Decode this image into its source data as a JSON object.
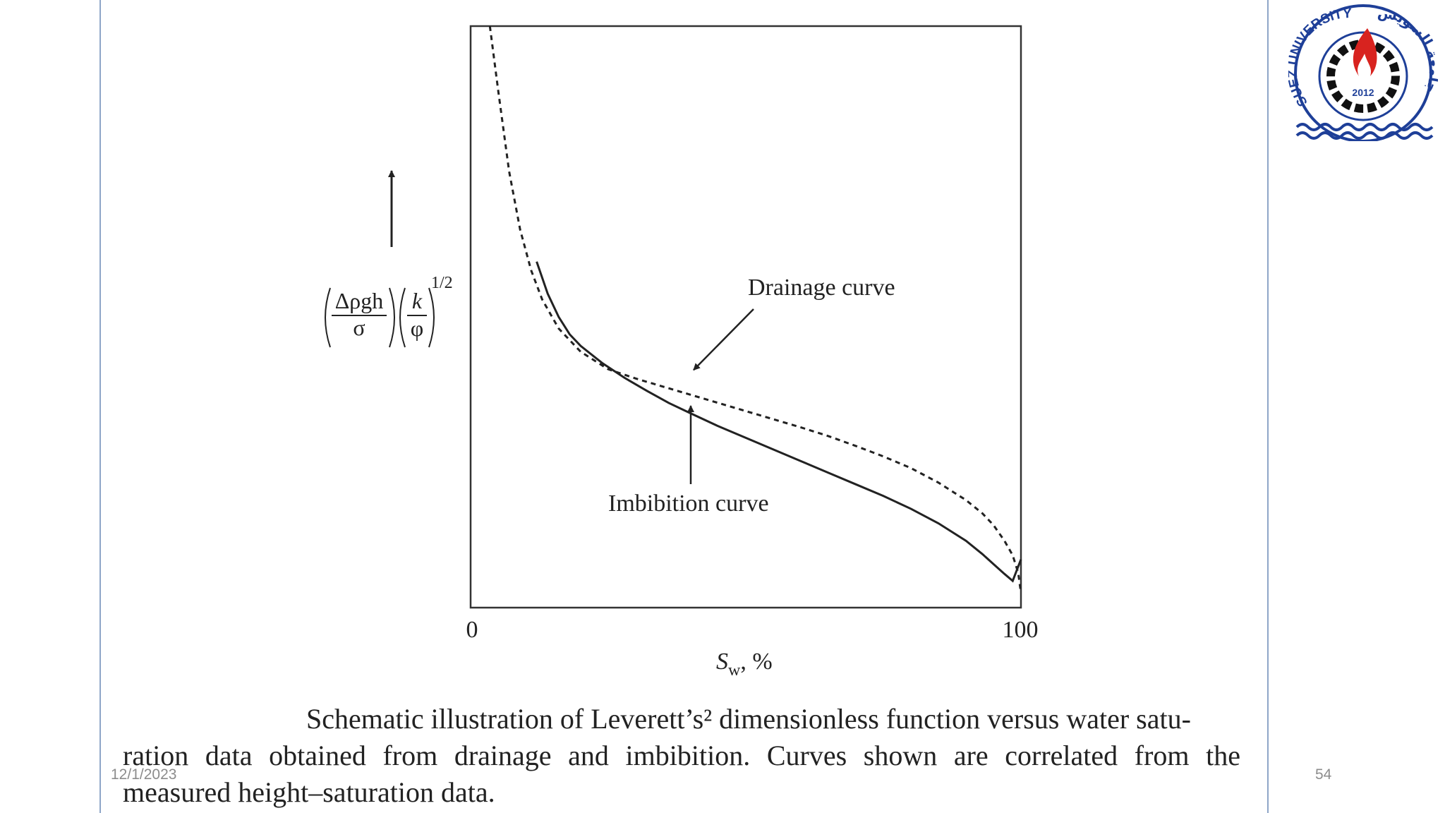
{
  "slide": {
    "footer_date": "12/1/2023",
    "page_number": "54",
    "caption_lines": [
      "Schematic illustration of Leverett’s² dimensionless function versus water satu-",
      "ration data obtained from drainage and imbibition. Curves shown are correlated from the",
      "measured height–saturation data."
    ],
    "logo": {
      "text_en": "SUEZ UNIVERSITY",
      "text_ar": "جامعة السويس",
      "year": "2012",
      "colors": {
        "blue": "#1e3f98",
        "red": "#d8231f",
        "black": "#111111"
      }
    }
  },
  "chart_data": {
    "type": "line",
    "title": "",
    "xlabel": "S_w, %",
    "xlabel_parts": {
      "symbol": "S",
      "subscript": "w",
      "suffix": ", %"
    },
    "ylabel": "(Δρgh/σ)(k/φ)^1/2",
    "ylabel_parts": {
      "num1": "Δρgh",
      "den1": "σ",
      "num2": "k",
      "den2": "φ",
      "exponent": "1/2"
    },
    "xlim": [
      0,
      100
    ],
    "ylim": [
      0,
      100
    ],
    "x_ticks": [
      "0",
      "100"
    ],
    "grid": false,
    "series": [
      {
        "name": "Drainage curve",
        "style": "dashed",
        "x": [
          3.5,
          5,
          7,
          9,
          11,
          13,
          16,
          20,
          25,
          30,
          35,
          40,
          45,
          50,
          55,
          60,
          65,
          70,
          75,
          80,
          85,
          90,
          93,
          95,
          97,
          98.5,
          99.5,
          100
        ],
        "y": [
          100,
          89,
          75,
          65,
          58,
          53,
          48,
          44,
          41,
          39.4,
          38,
          36.6,
          35.2,
          33.8,
          32.4,
          31,
          29.5,
          27.8,
          26,
          24,
          21.5,
          18.5,
          16.2,
          14.2,
          11.5,
          9,
          6,
          2.5
        ]
      },
      {
        "name": "Imbibition curve",
        "style": "solid",
        "x": [
          12,
          14,
          16,
          18,
          20,
          24,
          28,
          32,
          36,
          40,
          45,
          50,
          55,
          60,
          65,
          70,
          75,
          80,
          85,
          90,
          93,
          95,
          97,
          98.5,
          100
        ],
        "y": [
          59.5,
          54,
          50,
          47,
          45,
          42,
          39.5,
          37.3,
          35.2,
          33.4,
          31.2,
          29.2,
          27.2,
          25.2,
          23.2,
          21.2,
          19.2,
          17,
          14.5,
          11.5,
          9.2,
          7.5,
          5.8,
          4.6,
          8.3
        ]
      }
    ],
    "annotations": [
      {
        "text": "Drainage curve",
        "series": "Drainage curve",
        "arrow_to": {
          "x": 40,
          "y": 40.5
        }
      },
      {
        "text": "Imbibition curve",
        "series": "Imbibition curve",
        "arrow_to": {
          "x": 40,
          "y": 35.2
        }
      }
    ]
  }
}
